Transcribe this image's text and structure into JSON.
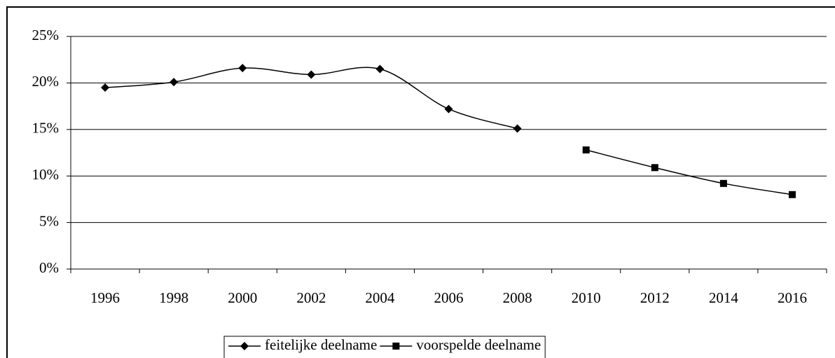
{
  "chart_data": {
    "type": "line",
    "categories": [
      "1996",
      "1998",
      "2000",
      "2002",
      "2004",
      "2006",
      "2008",
      "2010",
      "2012",
      "2014",
      "2016"
    ],
    "series": [
      {
        "name": "feitelijke deelname",
        "color": "#000000",
        "marker": "diamond",
        "values": [
          19.5,
          20.1,
          21.6,
          20.9,
          21.5,
          17.2,
          15.1,
          null,
          null,
          null,
          null
        ]
      },
      {
        "name": "voorspelde deelname",
        "color": "#000000",
        "marker": "square",
        "values": [
          null,
          null,
          null,
          null,
          null,
          null,
          null,
          12.8,
          10.9,
          9.2,
          8.0
        ]
      }
    ],
    "ylim": [
      0,
      25
    ],
    "yticks": [
      {
        "value": 0,
        "label": "0%"
      },
      {
        "value": 5,
        "label": "5%"
      },
      {
        "value": 10,
        "label": "10%"
      },
      {
        "value": 15,
        "label": "15%"
      },
      {
        "value": 20,
        "label": "20%"
      },
      {
        "value": 25,
        "label": "25%"
      }
    ],
    "grid": true,
    "smooth": true,
    "legend": "bottom"
  }
}
